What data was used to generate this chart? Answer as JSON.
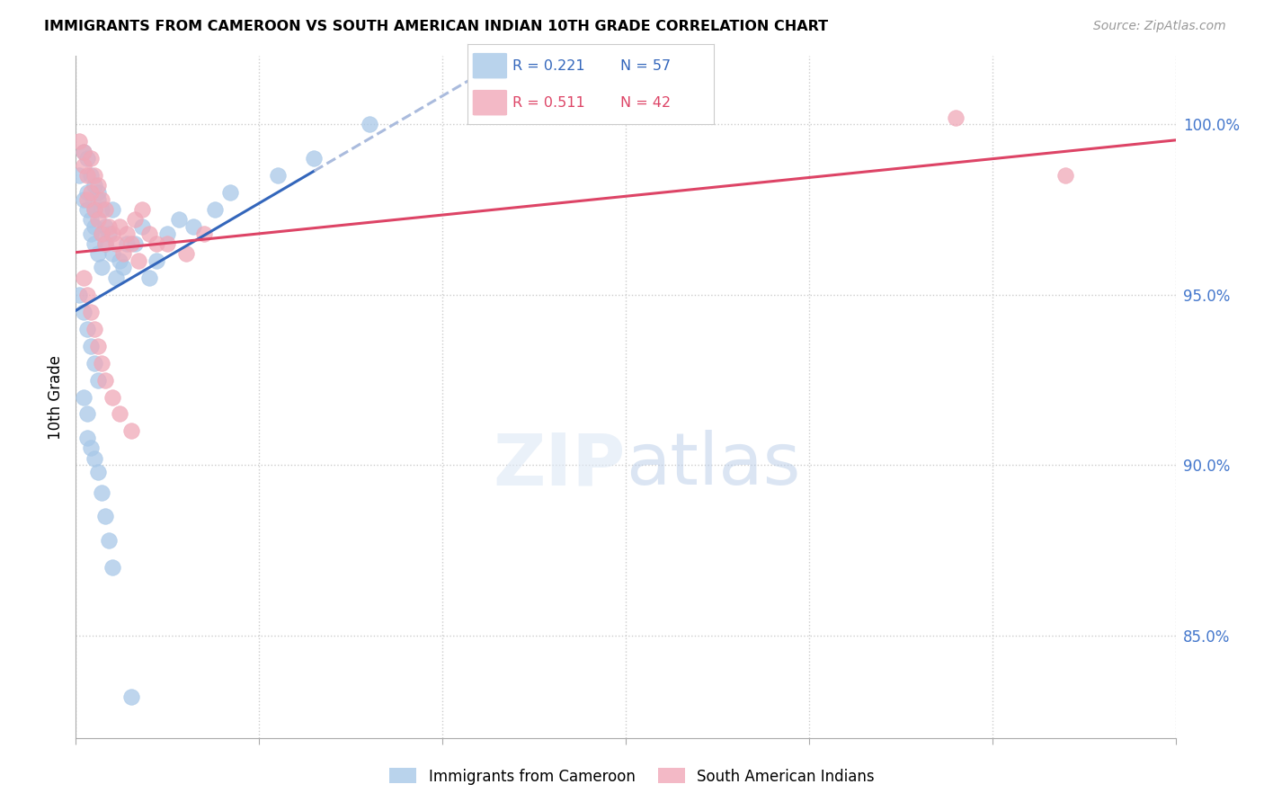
{
  "title": "IMMIGRANTS FROM CAMEROON VS SOUTH AMERICAN INDIAN 10TH GRADE CORRELATION CHART",
  "source": "Source: ZipAtlas.com",
  "ylabel": "10th Grade",
  "yticks": [
    85.0,
    90.0,
    95.0,
    100.0
  ],
  "ytick_labels": [
    "85.0%",
    "90.0%",
    "95.0%",
    "100.0%"
  ],
  "xlim": [
    0.0,
    0.3
  ],
  "ylim": [
    82.0,
    102.0
  ],
  "legend_blue_label": "Immigrants from Cameroon",
  "legend_pink_label": "South American Indians",
  "legend_r_blue": "R = 0.221",
  "legend_n_blue": "N = 57",
  "legend_r_pink": "R = 0.511",
  "legend_n_pink": "N = 42",
  "blue_color": "#a8c8e8",
  "pink_color": "#f0a8b8",
  "blue_line_color": "#3366bb",
  "pink_line_color": "#dd4466",
  "dashed_line_color": "#aabbdd",
  "background_color": "#ffffff",
  "blue_scatter_x": [
    0.001,
    0.002,
    0.002,
    0.003,
    0.003,
    0.003,
    0.004,
    0.004,
    0.004,
    0.005,
    0.005,
    0.005,
    0.005,
    0.006,
    0.006,
    0.006,
    0.007,
    0.007,
    0.007,
    0.008,
    0.008,
    0.009,
    0.01,
    0.01,
    0.011,
    0.012,
    0.013,
    0.014,
    0.016,
    0.018,
    0.02,
    0.022,
    0.025,
    0.028,
    0.032,
    0.038,
    0.042,
    0.055,
    0.065,
    0.08,
    0.001,
    0.002,
    0.003,
    0.004,
    0.005,
    0.006,
    0.002,
    0.003,
    0.003,
    0.004,
    0.005,
    0.006,
    0.007,
    0.008,
    0.009,
    0.01,
    0.015
  ],
  "blue_scatter_y": [
    98.5,
    97.8,
    99.2,
    97.5,
    98.0,
    99.0,
    97.2,
    98.5,
    96.8,
    97.5,
    98.2,
    96.5,
    97.0,
    97.8,
    96.2,
    98.0,
    96.8,
    97.5,
    95.8,
    97.0,
    96.5,
    96.8,
    97.5,
    96.2,
    95.5,
    96.0,
    95.8,
    96.5,
    96.5,
    97.0,
    95.5,
    96.0,
    96.8,
    97.2,
    97.0,
    97.5,
    98.0,
    98.5,
    99.0,
    100.0,
    95.0,
    94.5,
    94.0,
    93.5,
    93.0,
    92.5,
    92.0,
    91.5,
    90.8,
    90.5,
    90.2,
    89.8,
    89.2,
    88.5,
    87.8,
    87.0,
    83.2
  ],
  "pink_scatter_x": [
    0.001,
    0.002,
    0.002,
    0.003,
    0.003,
    0.004,
    0.004,
    0.005,
    0.005,
    0.006,
    0.006,
    0.007,
    0.007,
    0.008,
    0.008,
    0.009,
    0.01,
    0.011,
    0.012,
    0.013,
    0.014,
    0.015,
    0.016,
    0.017,
    0.018,
    0.02,
    0.022,
    0.025,
    0.03,
    0.035,
    0.002,
    0.003,
    0.004,
    0.005,
    0.006,
    0.007,
    0.008,
    0.01,
    0.012,
    0.015,
    0.24,
    0.27
  ],
  "pink_scatter_y": [
    99.5,
    98.8,
    99.2,
    98.5,
    97.8,
    98.0,
    99.0,
    97.5,
    98.5,
    97.2,
    98.2,
    97.8,
    96.8,
    97.5,
    96.5,
    97.0,
    96.8,
    96.5,
    97.0,
    96.2,
    96.8,
    96.5,
    97.2,
    96.0,
    97.5,
    96.8,
    96.5,
    96.5,
    96.2,
    96.8,
    95.5,
    95.0,
    94.5,
    94.0,
    93.5,
    93.0,
    92.5,
    92.0,
    91.5,
    91.0,
    100.2,
    98.5
  ],
  "xtick_positions": [
    0.0,
    0.05,
    0.1,
    0.15,
    0.2,
    0.25,
    0.3
  ]
}
